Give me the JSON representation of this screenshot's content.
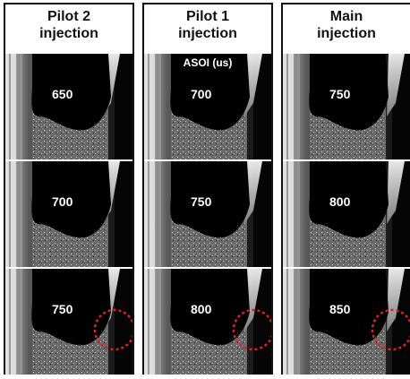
{
  "columns": [
    {
      "title_line1": "Pilot 2",
      "title_line2": "injection",
      "frames": [
        "650",
        "700",
        "750"
      ],
      "circle_frames": [
        2
      ]
    },
    {
      "title_line1": "Pilot 1",
      "title_line2": "injection",
      "frames": [
        "700",
        "750",
        "800"
      ],
      "circle_frames": [
        2
      ],
      "overlay_label": "ASOI (us)"
    },
    {
      "title_line1": "Main",
      "title_line2": "injection",
      "frames": [
        "750",
        "800",
        "850"
      ],
      "circle_frames": [
        2
      ]
    }
  ],
  "colors": {
    "circle": "#e02020",
    "plume": "#ffffff",
    "background": "#000000"
  }
}
